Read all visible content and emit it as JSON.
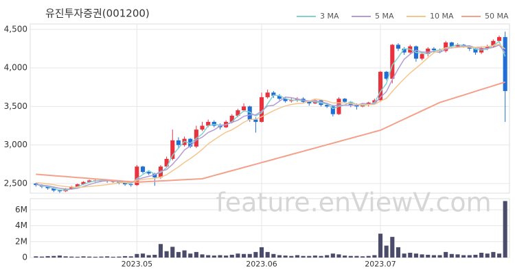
{
  "chart_data": {
    "type": "candlestick",
    "title": "유진투자증권(001200)",
    "watermark": "feature.enViewV.com",
    "up_color": "#e8333f",
    "down_color": "#1f6fd6",
    "volume_color": "#4b4b6b",
    "grid": true,
    "categories": [
      null,
      null,
      null,
      null,
      null,
      null,
      null,
      null,
      null,
      null,
      null,
      null,
      null,
      null,
      null,
      null,
      null,
      "2023.05",
      null,
      null,
      null,
      null,
      null,
      null,
      null,
      null,
      null,
      null,
      null,
      null,
      null,
      null,
      null,
      null,
      null,
      null,
      null,
      null,
      "2023.06",
      null,
      null,
      null,
      null,
      null,
      null,
      null,
      null,
      null,
      null,
      null,
      null,
      null,
      null,
      null,
      null,
      null,
      null,
      null,
      "2023.07",
      null,
      null,
      null,
      null,
      null,
      null,
      null,
      null,
      null,
      null,
      null,
      null,
      null,
      null,
      null,
      null,
      null,
      null,
      null,
      null,
      null
    ],
    "open": [
      2500,
      2480,
      2460,
      2440,
      2410,
      2400,
      2430,
      2460,
      2490,
      2520,
      2540,
      2540,
      2540,
      2530,
      2530,
      2510,
      2490,
      2480,
      2720,
      2650,
      2630,
      2580,
      2720,
      2820,
      3060,
      3000,
      3080,
      2980,
      3200,
      3250,
      3300,
      3250,
      3230,
      3300,
      3380,
      3450,
      3500,
      3330,
      3300,
      3620,
      3680,
      3640,
      3600,
      3570,
      3580,
      3600,
      3560,
      3540,
      3580,
      3520,
      3500,
      3400,
      3600,
      3560,
      3520,
      3500,
      3520,
      3550,
      3580,
      3950,
      3860,
      4300,
      4250,
      4200,
      4280,
      4120,
      4180,
      4250,
      4230,
      4220,
      4330,
      4280,
      4300,
      4280,
      4250,
      4200,
      4250,
      4280,
      4350,
      4400
    ],
    "high": [
      2510,
      2490,
      2470,
      2450,
      2420,
      2440,
      2470,
      2500,
      2530,
      2550,
      2560,
      2560,
      2550,
      2540,
      2540,
      2520,
      2500,
      2740,
      2730,
      2670,
      2640,
      2740,
      2850,
      3200,
      3100,
      3110,
      3090,
      3250,
      3300,
      3330,
      3320,
      3280,
      3320,
      3400,
      3470,
      3540,
      3510,
      3360,
      3680,
      3720,
      3700,
      3660,
      3620,
      3610,
      3620,
      3620,
      3580,
      3600,
      3590,
      3540,
      3520,
      3620,
      3610,
      3570,
      3540,
      3540,
      3560,
      3600,
      3960,
      3960,
      4310,
      4320,
      4270,
      4300,
      4290,
      4200,
      4270,
      4270,
      4250,
      4350,
      4340,
      4320,
      4310,
      4290,
      4260,
      4270,
      4300,
      4370,
      4420,
      4470
    ],
    "low": [
      2460,
      2440,
      2420,
      2390,
      2380,
      2390,
      2420,
      2450,
      2480,
      2510,
      2520,
      2520,
      2510,
      2510,
      2490,
      2470,
      2460,
      2470,
      2630,
      2610,
      2470,
      2560,
      2700,
      2800,
      2950,
      2980,
      2960,
      2960,
      3180,
      3230,
      3230,
      3200,
      3220,
      3280,
      3360,
      3430,
      3300,
      3160,
      3290,
      3600,
      3610,
      3580,
      3550,
      3550,
      3560,
      3540,
      3510,
      3530,
      3500,
      3480,
      3370,
      3390,
      3540,
      3490,
      3460,
      3490,
      3500,
      3530,
      3560,
      3840,
      3800,
      4220,
      4170,
      4180,
      4080,
      4100,
      4150,
      4200,
      4190,
      4200,
      4250,
      4260,
      4260,
      4220,
      4170,
      4180,
      4230,
      4260,
      4330,
      3300
    ],
    "close": [
      2480,
      2460,
      2440,
      2410,
      2400,
      2430,
      2460,
      2490,
      2520,
      2540,
      2540,
      2540,
      2530,
      2530,
      2510,
      2490,
      2480,
      2720,
      2650,
      2630,
      2580,
      2720,
      2820,
      3060,
      3000,
      3080,
      2980,
      3200,
      3250,
      3300,
      3250,
      3230,
      3300,
      3380,
      3450,
      3500,
      3330,
      3300,
      3620,
      3680,
      3640,
      3600,
      3570,
      3580,
      3600,
      3560,
      3540,
      3580,
      3520,
      3500,
      3400,
      3600,
      3560,
      3520,
      3500,
      3520,
      3550,
      3580,
      3950,
      3860,
      4300,
      4250,
      4200,
      4280,
      4120,
      4180,
      4250,
      4230,
      4220,
      4330,
      4280,
      4300,
      4280,
      4250,
      4200,
      4250,
      4280,
      4350,
      4400,
      3700
    ],
    "volume": [
      150000,
      120000,
      180000,
      200000,
      250000,
      150000,
      120000,
      100000,
      150000,
      120000,
      100000,
      120000,
      150000,
      100000,
      120000,
      180000,
      150000,
      450000,
      500000,
      300000,
      350000,
      1700000,
      800000,
      1350000,
      700000,
      900000,
      500000,
      700000,
      400000,
      300000,
      250000,
      300000,
      250000,
      350000,
      500000,
      450000,
      450000,
      700000,
      1300000,
      700000,
      450000,
      300000,
      250000,
      200000,
      300000,
      200000,
      200000,
      250000,
      200000,
      300000,
      500000,
      400000,
      250000,
      200000,
      200000,
      150000,
      200000,
      300000,
      3000000,
      1500000,
      2600000,
      1300000,
      500000,
      600000,
      500000,
      400000,
      350000,
      300000,
      300000,
      700000,
      450000,
      400000,
      300000,
      300000,
      350000,
      600000,
      500000,
      700000,
      500000,
      7100000
    ],
    "ylim": [
      2375,
      4570
    ],
    "yticks": [
      {
        "value": 2500,
        "label": "2,500"
      },
      {
        "value": 3000,
        "label": "3,000"
      },
      {
        "value": 3500,
        "label": "3,500"
      },
      {
        "value": 4000,
        "label": "4,000"
      },
      {
        "value": 4500,
        "label": "4,500"
      }
    ],
    "volume_ylim": [
      0,
      7400000
    ],
    "volume_yticks": [
      0,
      {
        "value": 2000000,
        "label": "2M"
      },
      {
        "value": 4000000,
        "label": "4M"
      },
      {
        "value": 6000000,
        "label": "6M"
      }
    ],
    "series": [
      {
        "name": "3 MA",
        "color": "#7fd3cf",
        "values": [
          2490,
          2470,
          2460,
          2437,
          2417,
          2413,
          2430,
          2460,
          2490,
          2517,
          2533,
          2540,
          2537,
          2533,
          2523,
          2510,
          2493,
          2563,
          2617,
          2667,
          2620,
          2643,
          2707,
          2867,
          2960,
          3047,
          3020,
          3087,
          3143,
          3250,
          3267,
          3260,
          3260,
          3303,
          3377,
          3443,
          3427,
          3377,
          3417,
          3533,
          3647,
          3640,
          3603,
          3583,
          3583,
          3580,
          3567,
          3560,
          3547,
          3533,
          3473,
          3500,
          3520,
          3560,
          3527,
          3513,
          3523,
          3550,
          3693,
          3797,
          4037,
          4137,
          4250,
          4243,
          4200,
          4193,
          4183,
          4220,
          4233,
          4260,
          4277,
          4303,
          4287,
          4277,
          4243,
          4233,
          4243,
          4293,
          4343,
          4150
        ]
      },
      {
        "name": "5 MA",
        "color": "#b39bd4",
        "values": [
          2490,
          2480,
          2470,
          2455,
          2438,
          2428,
          2428,
          2438,
          2462,
          2488,
          2510,
          2528,
          2537,
          2537,
          2530,
          2520,
          2508,
          2552,
          2574,
          2594,
          2612,
          2660,
          2680,
          2750,
          2836,
          2936,
          2988,
          3064,
          3102,
          3162,
          3196,
          3246,
          3266,
          3292,
          3322,
          3372,
          3392,
          3392,
          3440,
          3506,
          3514,
          3568,
          3622,
          3614,
          3598,
          3582,
          3570,
          3572,
          3560,
          3540,
          3508,
          3520,
          3516,
          3516,
          3516,
          3540,
          3530,
          3534,
          3620,
          3692,
          3848,
          3988,
          4112,
          4178,
          4230,
          4206,
          4206,
          4212,
          4200,
          4242,
          4262,
          4272,
          4282,
          4288,
          4262,
          4256,
          4252,
          4266,
          4296,
          4196
        ]
      },
      {
        "name": "10 MA",
        "color": "#f5c68c",
        "values": [
          2510,
          2505,
          2495,
          2485,
          2470,
          2460,
          2455,
          2450,
          2455,
          2463,
          2469,
          2477,
          2486,
          2498,
          2509,
          2515,
          2517,
          2541,
          2553,
          2562,
          2566,
          2584,
          2613,
          2666,
          2715,
          2774,
          2824,
          2881,
          2942,
          3014,
          3067,
          3118,
          3166,
          3198,
          3243,
          3295,
          3330,
          3335,
          3367,
          3405,
          3444,
          3479,
          3506,
          3526,
          3537,
          3543,
          3569,
          3597,
          3587,
          3569,
          3545,
          3547,
          3546,
          3538,
          3528,
          3524,
          3523,
          3526,
          3569,
          3605,
          3695,
          3780,
          3859,
          3935,
          3997,
          4063,
          4133,
          4198,
          4225,
          4262,
          4259,
          4264,
          4272,
          4269,
          4267,
          4274,
          4277,
          4289,
          4307,
          4244
        ]
      },
      {
        "name": "50 MA",
        "color": "#f4a08a",
        "values": [
          2620,
          2614,
          2608,
          2602,
          2596,
          2590,
          2584,
          2578,
          2572,
          2566,
          2560,
          2554,
          2548,
          2542,
          2536,
          2530,
          2524,
          2518,
          2522,
          2526,
          2530,
          2534,
          2538,
          2542,
          2546,
          2550,
          2554,
          2558,
          2562,
          2583,
          2604,
          2625,
          2646,
          2667,
          2688,
          2709,
          2730,
          2751,
          2772,
          2793,
          2814,
          2835,
          2856,
          2877,
          2898,
          2919,
          2940,
          2961,
          2982,
          3003,
          3024,
          3045,
          3066,
          3087,
          3108,
          3129,
          3150,
          3171,
          3192,
          3228,
          3264,
          3300,
          3336,
          3372,
          3408,
          3444,
          3480,
          3516,
          3552,
          3576,
          3600,
          3624,
          3648,
          3672,
          3696,
          3720,
          3744,
          3768,
          3792,
          3816
        ]
      }
    ]
  }
}
